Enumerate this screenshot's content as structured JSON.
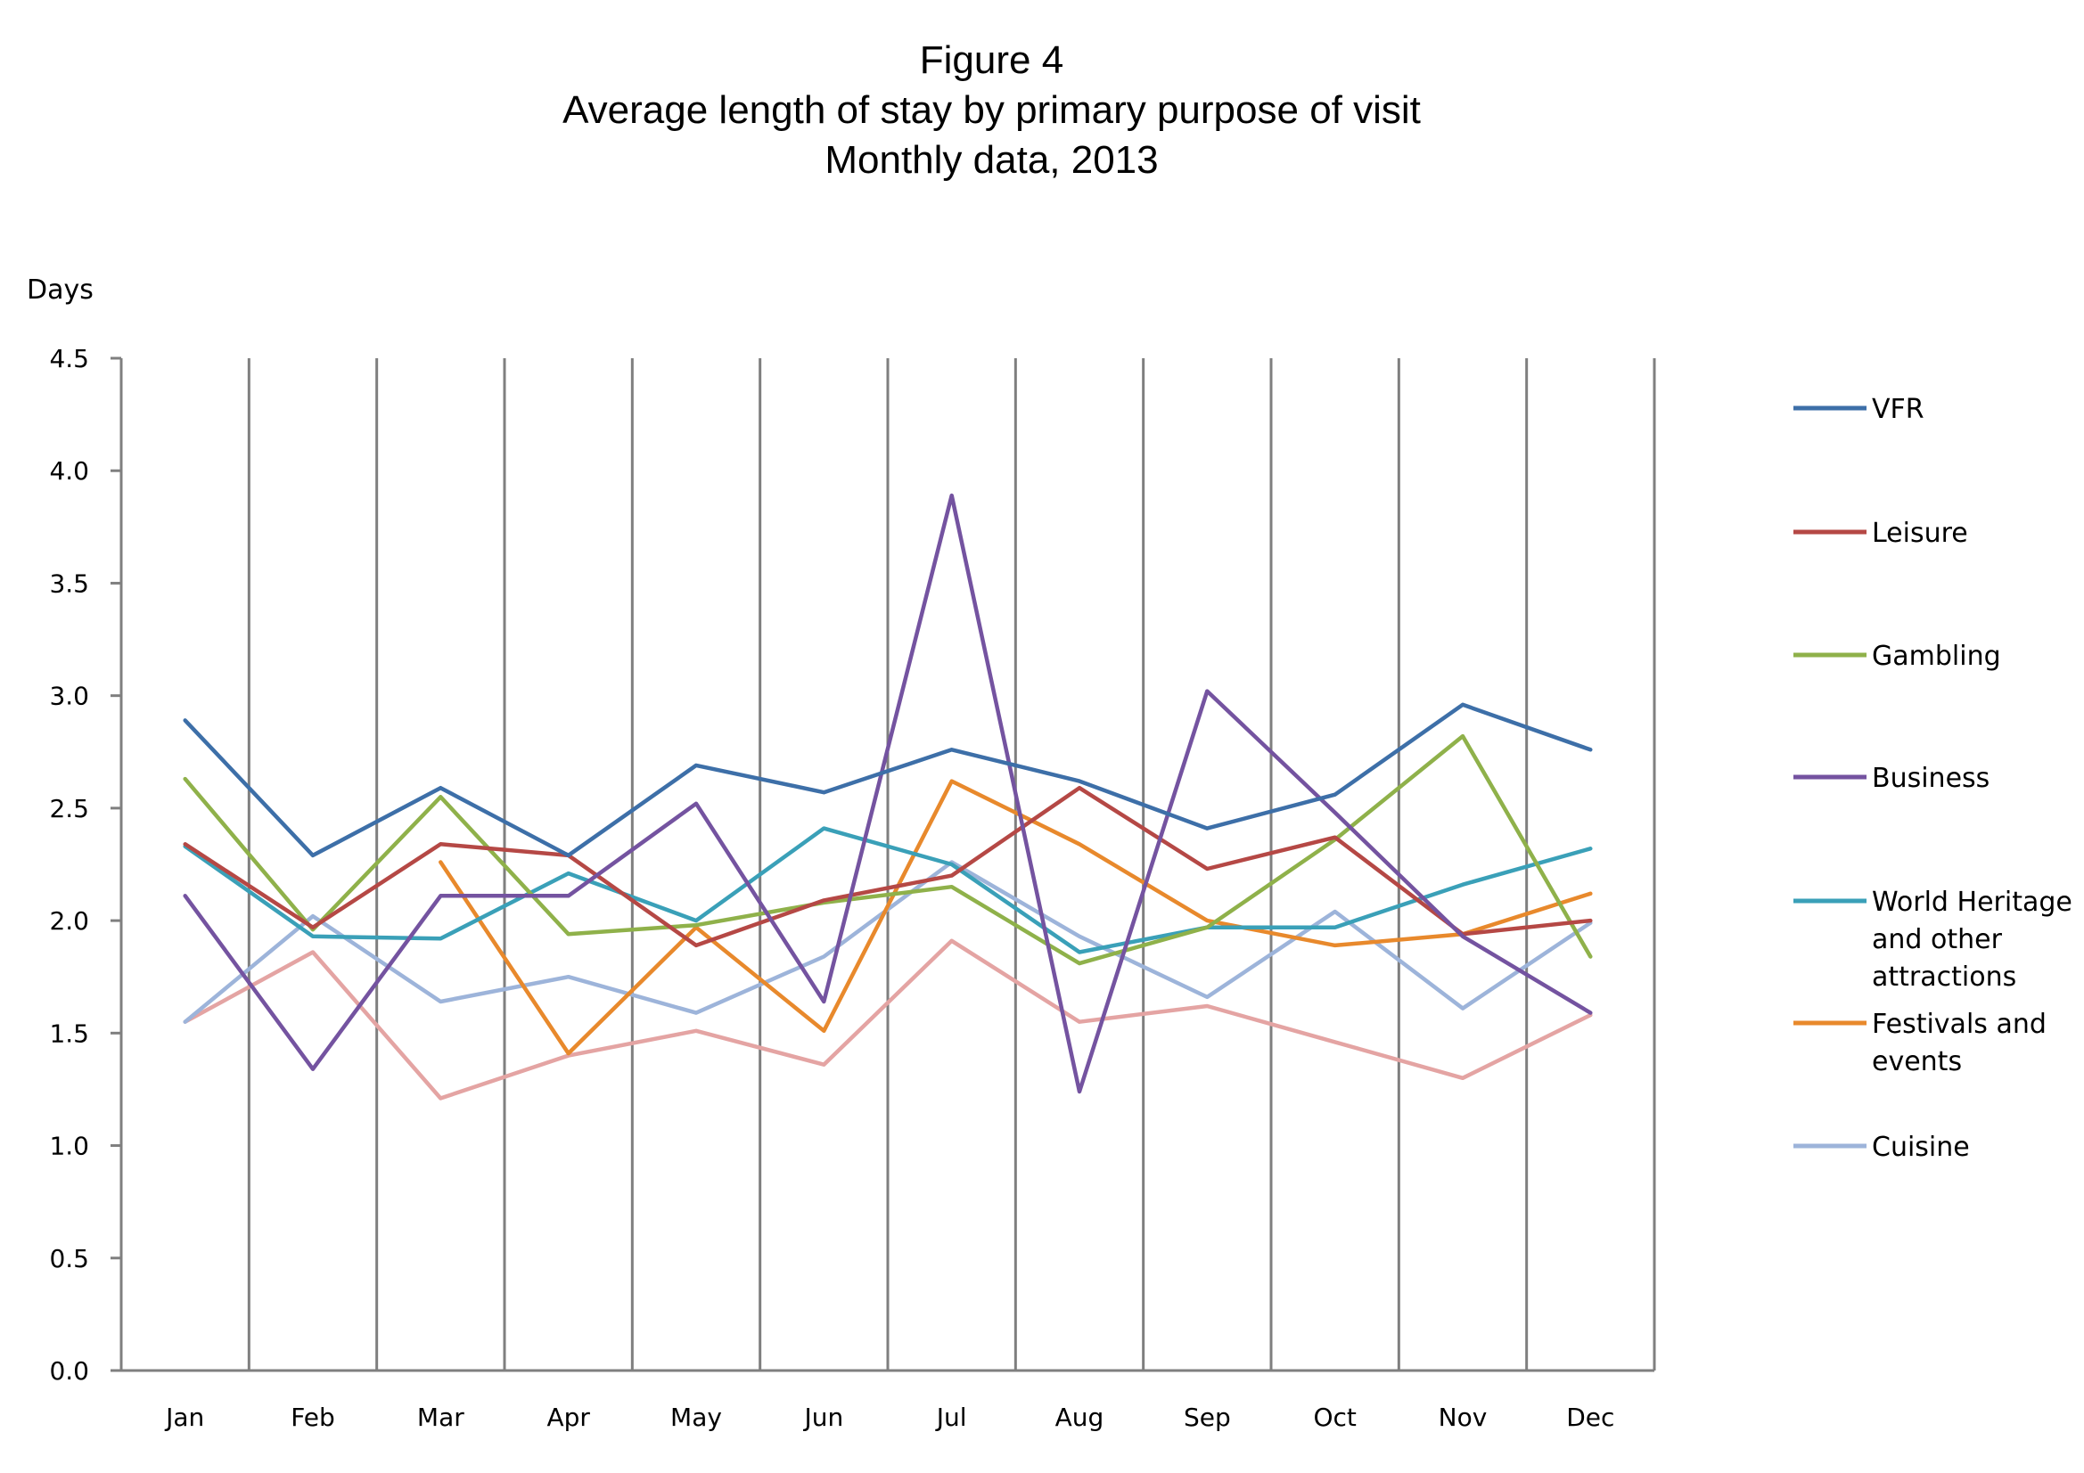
{
  "chart_data": {
    "type": "line",
    "title": "Figure 4",
    "subtitle": "Average length of stay by primary purpose of visit",
    "subtitle2": "Monthly data, 2013",
    "ylabel": "Days",
    "ylim": [
      0,
      4.5
    ],
    "ytick_step": 0.5,
    "grid": "vertical",
    "legend": "right",
    "categories": [
      "Jan",
      "Feb",
      "Mar",
      "Apr",
      "May",
      "Jun",
      "Jul",
      "Aug",
      "Sep",
      "Oct",
      "Nov",
      "Dec"
    ],
    "series": [
      {
        "name": "VFR",
        "color": "#3d6fa8",
        "values": [
          2.89,
          2.29,
          2.59,
          2.29,
          2.69,
          2.57,
          2.76,
          2.62,
          2.41,
          2.56,
          2.96,
          2.76
        ]
      },
      {
        "name": "Leisure",
        "color": "#b54845",
        "values": [
          2.34,
          1.97,
          2.34,
          2.29,
          1.89,
          2.09,
          2.2,
          2.59,
          2.23,
          2.37,
          1.94,
          2.0
        ]
      },
      {
        "name": "Gambling",
        "color": "#8fb14a",
        "values": [
          2.63,
          1.96,
          2.55,
          1.94,
          1.98,
          2.08,
          2.15,
          1.81,
          1.97,
          2.36,
          2.82,
          1.84
        ]
      },
      {
        "name": "Business",
        "color": "#7453a0",
        "values": [
          2.11,
          1.34,
          2.11,
          2.11,
          2.52,
          1.64,
          3.89,
          1.24,
          3.02,
          2.48,
          1.93,
          1.59
        ]
      },
      {
        "name": "World Heritage and other attractions",
        "color": "#3aa0b8",
        "values": [
          2.33,
          1.93,
          1.92,
          2.21,
          2.0,
          2.41,
          2.25,
          1.86,
          1.97,
          1.97,
          2.16,
          2.32
        ]
      },
      {
        "name": "Festivals and events",
        "color": "#e8892c",
        "values": [
          null,
          null,
          2.26,
          1.41,
          1.97,
          1.51,
          2.62,
          2.34,
          2.0,
          1.89,
          1.94,
          2.12
        ]
      },
      {
        "name": "Cuisine",
        "color": "#9db4da",
        "values": [
          1.55,
          2.02,
          1.64,
          1.75,
          1.59,
          1.84,
          2.26,
          1.93,
          1.66,
          2.04,
          1.61,
          1.99
        ]
      },
      {
        "name": "",
        "color": "#e4a4a3",
        "values": [
          1.55,
          1.86,
          1.21,
          1.4,
          1.51,
          1.36,
          1.91,
          1.55,
          1.62,
          1.46,
          1.3,
          1.58
        ]
      }
    ]
  }
}
